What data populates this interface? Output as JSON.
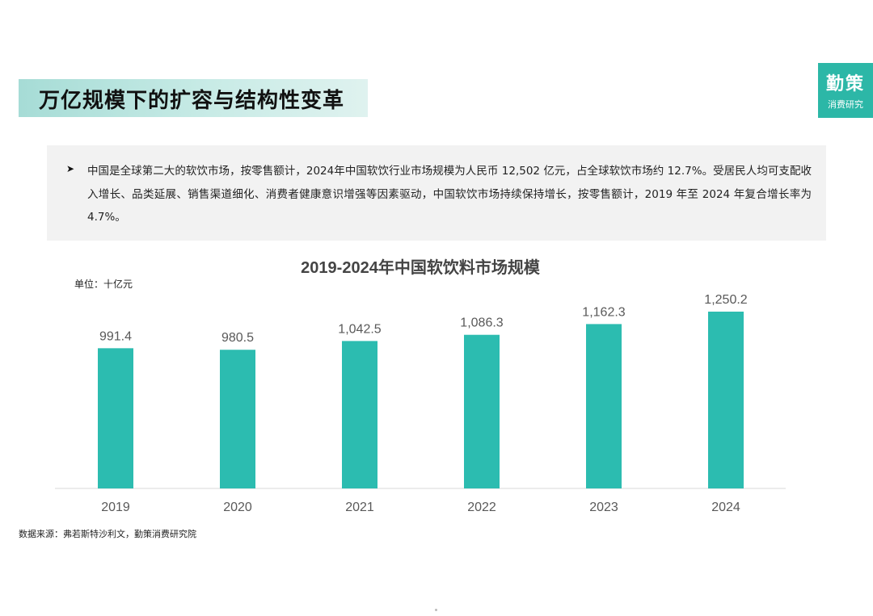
{
  "header": {
    "title": "万亿规模下的扩容与结构性变革"
  },
  "logo": {
    "main": "勤策",
    "sub": "消费研究"
  },
  "summary": {
    "bullet_icon": "arrow-bullet-icon",
    "text": "中国是全球第二大的软饮市场，按零售额计，2024年中国软饮行业市场规模为人民币 12,502 亿元，占全球软饮市场约 12.7%。受居民人均可支配收入增长、品类延展、销售渠道细化、消费者健康意识增强等因素驱动，中国软饮市场持续保持增长，按零售额计，2019 年至 2024 年复合增长率为 4.7%。"
  },
  "chart_data": {
    "type": "bar",
    "title": "2019-2024年中国软饮料市场规模",
    "unit_label": "单位：十亿元",
    "categories": [
      "2019",
      "2020",
      "2021",
      "2022",
      "2023",
      "2024"
    ],
    "values": [
      991.4,
      980.5,
      1042.5,
      1086.3,
      1162.3,
      1250.2
    ],
    "data_labels": [
      "991.4",
      "980.5",
      "1,042.5",
      "1,086.3",
      "1,162.3",
      "1,250.2"
    ],
    "bar_color": "#2cbcb0",
    "ylim": [
      0,
      1250.2
    ],
    "grid": false,
    "legend": "none"
  },
  "footnote": "数据来源：弗若斯特沙利文，勤策消费研究院"
}
